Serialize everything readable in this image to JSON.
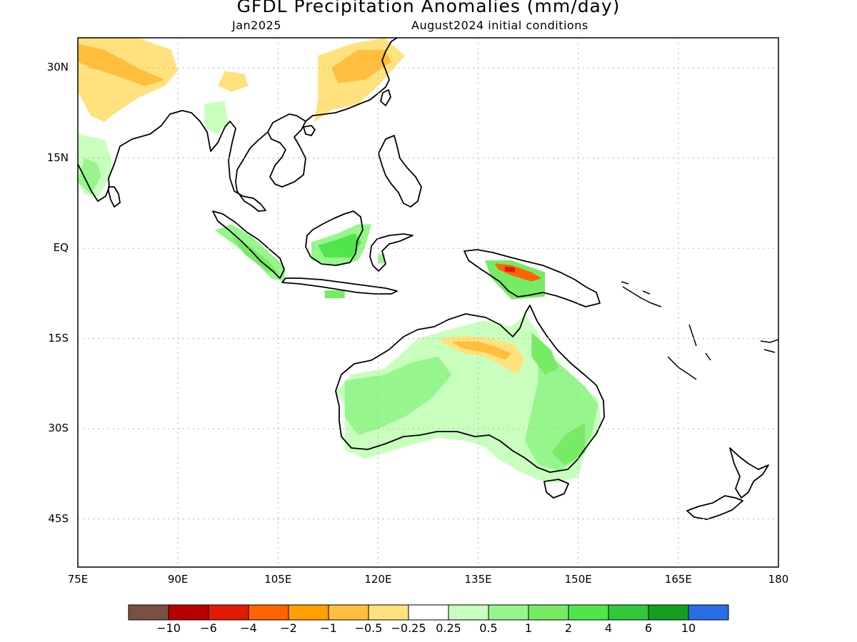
{
  "title": "GFDL Precipitation Anomalies (mm/day)",
  "subtitle_left": "Jan2025",
  "subtitle_right": "August2024 initial conditions",
  "map": {
    "lon_range": [
      75,
      180
    ],
    "lat_range": [
      -53,
      35
    ],
    "lat_ticks": [
      {
        "value": 30,
        "label": "30N"
      },
      {
        "value": 15,
        "label": "15N"
      },
      {
        "value": 0,
        "label": "EQ"
      },
      {
        "value": -15,
        "label": "15S"
      },
      {
        "value": -30,
        "label": "30S"
      },
      {
        "value": -45,
        "label": "45S"
      }
    ],
    "lon_ticks": [
      {
        "value": 75,
        "label": "75E"
      },
      {
        "value": 90,
        "label": "90E"
      },
      {
        "value": 105,
        "label": "105E"
      },
      {
        "value": 120,
        "label": "120E"
      },
      {
        "value": 135,
        "label": "135E"
      },
      {
        "value": 150,
        "label": "150E"
      },
      {
        "value": 165,
        "label": "165E"
      },
      {
        "value": 180,
        "label": "180"
      }
    ],
    "grid": true
  },
  "colorbar": {
    "colors": [
      "#7a4f44",
      "#b80000",
      "#e21b00",
      "#ff6400",
      "#ffa000",
      "#ffbf3c",
      "#ffe27d",
      "#ffffff",
      "#c8ffbe",
      "#96f58c",
      "#78eb64",
      "#50e64b",
      "#32c83c",
      "#14a01e",
      "#2a6ee6"
    ],
    "labels": [
      "−10",
      "−6",
      "−4",
      "−2",
      "−1",
      "−0.5",
      "−0.25",
      "0.25",
      "0.5",
      "1",
      "2",
      "4",
      "6",
      "10"
    ]
  },
  "colors": {
    "land_outline": "#000000",
    "grid": "#b4b4b4"
  },
  "regions": [
    {
      "name": "northern-india-dry",
      "color": "#ffe27d",
      "points": [
        [
          75,
          35
        ],
        [
          84,
          35
        ],
        [
          89,
          33
        ],
        [
          90,
          29.5
        ],
        [
          88,
          27
        ],
        [
          84,
          25
        ],
        [
          80,
          22
        ],
        [
          79,
          21
        ],
        [
          77,
          22
        ],
        [
          75,
          26
        ]
      ]
    },
    {
      "name": "himalaya-dry-core",
      "color": "#ffbf3c",
      "points": [
        [
          75,
          34
        ],
        [
          79,
          33
        ],
        [
          84,
          30
        ],
        [
          88,
          28
        ],
        [
          85,
          27
        ],
        [
          80,
          29
        ],
        [
          77,
          30
        ],
        [
          75,
          31
        ]
      ]
    },
    {
      "name": "myanmar-dry",
      "color": "#ffe27d",
      "points": [
        [
          97,
          29.5
        ],
        [
          100,
          29
        ],
        [
          100.5,
          27
        ],
        [
          98,
          26
        ],
        [
          96,
          27
        ]
      ]
    },
    {
      "name": "south-china-dry",
      "color": "#ffe27d",
      "points": [
        [
          111,
          32
        ],
        [
          116,
          34
        ],
        [
          121,
          35
        ],
        [
          124,
          32
        ],
        [
          120,
          27
        ],
        [
          117,
          24
        ],
        [
          113,
          23
        ],
        [
          110.5,
          21
        ],
        [
          111,
          25
        ]
      ]
    },
    {
      "name": "south-china-dry-core",
      "color": "#ffbf3c",
      "points": [
        [
          113,
          30
        ],
        [
          117,
          33
        ],
        [
          121,
          33
        ],
        [
          122,
          31
        ],
        [
          118,
          28
        ],
        [
          114,
          27.5
        ]
      ]
    },
    {
      "name": "india-south-wet",
      "color": "#c8ffbe",
      "points": [
        [
          75,
          19
        ],
        [
          79,
          18
        ],
        [
          80,
          15
        ],
        [
          80,
          12
        ],
        [
          78,
          8.5
        ],
        [
          76,
          9
        ],
        [
          75,
          11
        ]
      ]
    },
    {
      "name": "india-south-wet-core",
      "color": "#96f58c",
      "points": [
        [
          76,
          15
        ],
        [
          78,
          14
        ],
        [
          78.5,
          12
        ],
        [
          77,
          9
        ],
        [
          75,
          11
        ]
      ]
    },
    {
      "name": "myanmar-wet",
      "color": "#c8ffbe",
      "points": [
        [
          94,
          24
        ],
        [
          97,
          24.5
        ],
        [
          97.5,
          21
        ],
        [
          96,
          19
        ],
        [
          94,
          20
        ]
      ]
    },
    {
      "name": "sumatra-wet",
      "color": "#96f58c",
      "points": [
        [
          95.5,
          3
        ],
        [
          98,
          4
        ],
        [
          101,
          2
        ],
        [
          104,
          -1
        ],
        [
          106,
          -3
        ],
        [
          106,
          -5.5
        ],
        [
          104,
          -5
        ],
        [
          101,
          -1.5
        ],
        [
          98,
          1
        ]
      ]
    },
    {
      "name": "sumatra-wet-core",
      "color": "#78eb64",
      "points": [
        [
          98,
          2
        ],
        [
          100.5,
          0.5
        ],
        [
          103.5,
          -2
        ],
        [
          105,
          -4
        ],
        [
          103.5,
          -4
        ],
        [
          100,
          -1
        ]
      ]
    },
    {
      "name": "borneo-wet",
      "color": "#96f58c",
      "points": [
        [
          110,
          1
        ],
        [
          114,
          2.5
        ],
        [
          117,
          4
        ],
        [
          119,
          4
        ],
        [
          118,
          0
        ],
        [
          117,
          -2
        ],
        [
          114,
          -3
        ],
        [
          110,
          -2
        ]
      ]
    },
    {
      "name": "borneo-wet-core",
      "color": "#50e64b",
      "points": [
        [
          111,
          0.5
        ],
        [
          114,
          1.5
        ],
        [
          116.5,
          2.5
        ],
        [
          117.5,
          1
        ],
        [
          116,
          -1.5
        ],
        [
          112,
          -1.5
        ]
      ]
    },
    {
      "name": "java-wet",
      "color": "#78eb64",
      "points": [
        [
          112,
          -7
        ],
        [
          115,
          -7
        ],
        [
          115,
          -8.3
        ],
        [
          112,
          -8.3
        ]
      ]
    },
    {
      "name": "sulawesi-wet",
      "color": "#96f58c",
      "points": [
        [
          120,
          -1
        ],
        [
          121,
          -1
        ],
        [
          121,
          -2.5
        ],
        [
          120,
          -2.5
        ]
      ]
    },
    {
      "name": "new-guinea-wet",
      "color": "#78eb64",
      "points": [
        [
          136,
          -2
        ],
        [
          140,
          -2
        ],
        [
          145,
          -4
        ],
        [
          145,
          -8
        ],
        [
          140,
          -8.5
        ],
        [
          137,
          -5
        ]
      ]
    },
    {
      "name": "new-guinea-dry",
      "color": "#ff6400",
      "points": [
        [
          137.5,
          -2.5
        ],
        [
          140,
          -2.8
        ],
        [
          143,
          -4
        ],
        [
          144.5,
          -5
        ],
        [
          143,
          -5.5
        ],
        [
          140,
          -4.5
        ],
        [
          138,
          -3.5
        ]
      ]
    },
    {
      "name": "new-guinea-dry-core",
      "color": "#e21b00",
      "points": [
        [
          139,
          -3
        ],
        [
          140.5,
          -3.2
        ],
        [
          140.5,
          -4
        ],
        [
          139,
          -3.8
        ]
      ]
    },
    {
      "name": "australia-wet",
      "color": "#c8ffbe",
      "points": [
        [
          116,
          -21
        ],
        [
          121,
          -20
        ],
        [
          126,
          -15
        ],
        [
          129,
          -14
        ],
        [
          136,
          -12
        ],
        [
          140,
          -13
        ],
        [
          142,
          -11
        ],
        [
          144,
          -14
        ],
        [
          146,
          -19
        ],
        [
          149,
          -22
        ],
        [
          153,
          -25
        ],
        [
          153.5,
          -29
        ],
        [
          151,
          -34
        ],
        [
          150,
          -38
        ],
        [
          147,
          -39
        ],
        [
          144,
          -38.5
        ],
        [
          141,
          -37
        ],
        [
          138,
          -35
        ],
        [
          136,
          -33
        ],
        [
          133,
          -32
        ],
        [
          129,
          -31.5
        ],
        [
          124,
          -33
        ],
        [
          118,
          -35
        ],
        [
          115,
          -33.5
        ],
        [
          115,
          -26
        ],
        [
          113.5,
          -24
        ]
      ]
    },
    {
      "name": "australia-wet-west",
      "color": "#96f58c",
      "points": [
        [
          115,
          -22
        ],
        [
          121,
          -21
        ],
        [
          125,
          -19
        ],
        [
          129,
          -18
        ],
        [
          131,
          -21
        ],
        [
          128,
          -25
        ],
        [
          124,
          -28
        ],
        [
          120,
          -30
        ],
        [
          117,
          -31
        ],
        [
          115,
          -28
        ]
      ]
    },
    {
      "name": "australia-wet-east",
      "color": "#96f58c",
      "points": [
        [
          144,
          -16
        ],
        [
          148,
          -20
        ],
        [
          151,
          -23
        ],
        [
          153,
          -26
        ],
        [
          152,
          -31
        ],
        [
          150,
          -35
        ],
        [
          147,
          -37
        ],
        [
          144,
          -36
        ],
        [
          142,
          -32
        ],
        [
          143,
          -27
        ],
        [
          144,
          -22
        ]
      ]
    },
    {
      "name": "australia-wet-qld-core",
      "color": "#78eb64",
      "points": [
        [
          143,
          -14
        ],
        [
          146,
          -17
        ],
        [
          147,
          -20
        ],
        [
          145,
          -21
        ],
        [
          143,
          -18
        ]
      ]
    },
    {
      "name": "australia-wet-south-core",
      "color": "#78eb64",
      "points": [
        [
          148,
          -31
        ],
        [
          151,
          -29
        ],
        [
          151,
          -34
        ],
        [
          148,
          -36
        ],
        [
          146,
          -34
        ]
      ]
    },
    {
      "name": "australia-dry-north",
      "color": "#ffe27d",
      "points": [
        [
          129,
          -15
        ],
        [
          133,
          -14.5
        ],
        [
          137,
          -15
        ],
        [
          140.5,
          -16
        ],
        [
          142,
          -18.5
        ],
        [
          141,
          -21
        ],
        [
          138.5,
          -19.5
        ],
        [
          136,
          -18
        ],
        [
          133,
          -17.5
        ],
        [
          130,
          -16
        ]
      ]
    },
    {
      "name": "australia-dry-north-core",
      "color": "#ffbf3c",
      "points": [
        [
          131,
          -15.5
        ],
        [
          135,
          -15.5
        ],
        [
          138,
          -16.5
        ],
        [
          140,
          -17.5
        ],
        [
          139,
          -18.5
        ],
        [
          136,
          -17.3
        ],
        [
          132.5,
          -16.6
        ]
      ]
    }
  ]
}
